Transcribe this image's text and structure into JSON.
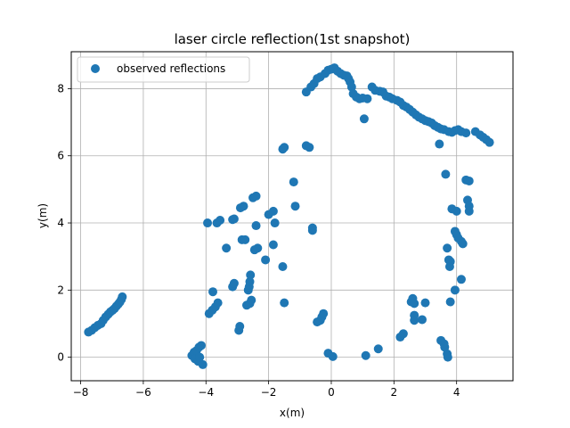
{
  "chart_data": {
    "type": "scatter",
    "title": "laser circle reflection(1st snapshot)",
    "xlabel": "x(m)",
    "ylabel": "y(m)",
    "xlim": [
      -8.3,
      5.8
    ],
    "ylim": [
      -0.7,
      9.1
    ],
    "xticks": [
      -8,
      -6,
      -4,
      -2,
      0,
      2,
      4
    ],
    "yticks": [
      0,
      2,
      4,
      6,
      8
    ],
    "grid": true,
    "legend_position": "top-left",
    "point_color": "#1f77b4",
    "series": [
      {
        "name": "observed reflections",
        "points": [
          [
            -7.75,
            0.75
          ],
          [
            -7.65,
            0.8
          ],
          [
            -7.55,
            0.88
          ],
          [
            -7.45,
            0.95
          ],
          [
            -7.35,
            1.0
          ],
          [
            -7.28,
            1.1
          ],
          [
            -7.2,
            1.2
          ],
          [
            -7.12,
            1.28
          ],
          [
            -7.05,
            1.35
          ],
          [
            -6.98,
            1.4
          ],
          [
            -6.92,
            1.45
          ],
          [
            -6.86,
            1.52
          ],
          [
            -6.8,
            1.58
          ],
          [
            -6.75,
            1.64
          ],
          [
            -6.7,
            1.72
          ],
          [
            -6.67,
            1.8
          ],
          [
            -4.45,
            0.05
          ],
          [
            -4.38,
            0.15
          ],
          [
            -4.3,
            0.2
          ],
          [
            -4.22,
            0.3
          ],
          [
            -4.15,
            0.35
          ],
          [
            -4.35,
            -0.05
          ],
          [
            -4.25,
            -0.12
          ],
          [
            -4.1,
            -0.22
          ],
          [
            -4.2,
            0.0
          ],
          [
            -3.9,
            1.3
          ],
          [
            -3.8,
            1.4
          ],
          [
            -3.7,
            1.5
          ],
          [
            -3.62,
            1.62
          ],
          [
            -3.78,
            1.95
          ],
          [
            -3.15,
            2.1
          ],
          [
            -3.1,
            2.2
          ],
          [
            -2.95,
            0.8
          ],
          [
            -2.92,
            0.92
          ],
          [
            -2.7,
            1.55
          ],
          [
            -2.6,
            1.6
          ],
          [
            -2.55,
            1.7
          ],
          [
            -2.65,
            2.0
          ],
          [
            -2.62,
            2.1
          ],
          [
            -2.6,
            2.25
          ],
          [
            -2.58,
            2.45
          ],
          [
            -2.45,
            3.2
          ],
          [
            -2.35,
            3.25
          ],
          [
            -2.1,
            2.9
          ],
          [
            -1.85,
            3.35
          ],
          [
            -1.55,
            2.7
          ],
          [
            -1.5,
            1.62
          ],
          [
            -3.95,
            4.0
          ],
          [
            -3.65,
            4.0
          ],
          [
            -3.55,
            4.08
          ],
          [
            -3.15,
            4.1
          ],
          [
            -3.1,
            4.12
          ],
          [
            -2.9,
            4.45
          ],
          [
            -2.8,
            4.5
          ],
          [
            -2.5,
            4.75
          ],
          [
            -2.4,
            4.8
          ],
          [
            -2.4,
            3.92
          ],
          [
            -2.0,
            4.25
          ],
          [
            -1.85,
            4.35
          ],
          [
            -1.8,
            4.0
          ],
          [
            -3.35,
            3.25
          ],
          [
            -2.85,
            3.5
          ],
          [
            -2.75,
            3.5
          ],
          [
            -1.55,
            6.2
          ],
          [
            -1.5,
            6.25
          ],
          [
            -1.2,
            5.22
          ],
          [
            -1.15,
            4.5
          ],
          [
            -0.8,
            6.3
          ],
          [
            -0.7,
            6.25
          ],
          [
            -0.6,
            3.78
          ],
          [
            -0.6,
            3.85
          ],
          [
            -0.45,
            1.05
          ],
          [
            -0.35,
            1.1
          ],
          [
            -0.3,
            1.2
          ],
          [
            -0.25,
            1.3
          ],
          [
            -0.1,
            0.12
          ],
          [
            0.05,
            0.02
          ],
          [
            -0.8,
            7.9
          ],
          [
            -0.65,
            8.05
          ],
          [
            -0.55,
            8.15
          ],
          [
            -0.45,
            8.3
          ],
          [
            -0.35,
            8.35
          ],
          [
            -0.2,
            8.45
          ],
          [
            -0.1,
            8.55
          ],
          [
            0.0,
            8.58
          ],
          [
            0.1,
            8.62
          ],
          [
            0.2,
            8.52
          ],
          [
            0.3,
            8.45
          ],
          [
            0.4,
            8.4
          ],
          [
            0.5,
            8.38
          ],
          [
            0.55,
            8.3
          ],
          [
            0.6,
            8.2
          ],
          [
            0.65,
            8.05
          ],
          [
            0.7,
            7.85
          ],
          [
            0.8,
            7.75
          ],
          [
            0.9,
            7.7
          ],
          [
            1.0,
            7.72
          ],
          [
            1.05,
            7.1
          ],
          [
            1.15,
            7.7
          ],
          [
            1.3,
            8.05
          ],
          [
            1.4,
            7.95
          ],
          [
            1.55,
            7.92
          ],
          [
            1.65,
            7.9
          ],
          [
            1.75,
            7.78
          ],
          [
            1.85,
            7.75
          ],
          [
            1.95,
            7.7
          ],
          [
            2.1,
            7.65
          ],
          [
            2.2,
            7.6
          ],
          [
            2.3,
            7.5
          ],
          [
            2.4,
            7.45
          ],
          [
            2.5,
            7.38
          ],
          [
            2.6,
            7.3
          ],
          [
            2.7,
            7.22
          ],
          [
            2.8,
            7.15
          ],
          [
            2.9,
            7.1
          ],
          [
            3.0,
            7.05
          ],
          [
            3.1,
            7.02
          ],
          [
            3.2,
            6.98
          ],
          [
            3.3,
            6.9
          ],
          [
            3.4,
            6.85
          ],
          [
            3.5,
            6.8
          ],
          [
            3.6,
            6.78
          ],
          [
            3.75,
            6.72
          ],
          [
            3.85,
            6.7
          ],
          [
            3.95,
            6.75
          ],
          [
            4.05,
            6.78
          ],
          [
            4.15,
            6.72
          ],
          [
            4.3,
            6.68
          ],
          [
            4.6,
            6.72
          ],
          [
            4.75,
            6.62
          ],
          [
            4.85,
            6.55
          ],
          [
            4.95,
            6.48
          ],
          [
            5.05,
            6.4
          ],
          [
            3.45,
            6.35
          ],
          [
            3.65,
            5.45
          ],
          [
            4.3,
            5.28
          ],
          [
            4.4,
            5.25
          ],
          [
            4.35,
            4.68
          ],
          [
            4.4,
            4.5
          ],
          [
            4.4,
            4.35
          ],
          [
            3.85,
            4.42
          ],
          [
            4.0,
            4.35
          ],
          [
            3.95,
            3.75
          ],
          [
            4.0,
            3.65
          ],
          [
            4.05,
            3.55
          ],
          [
            4.15,
            3.45
          ],
          [
            4.2,
            3.38
          ],
          [
            3.7,
            3.25
          ],
          [
            3.75,
            2.9
          ],
          [
            3.8,
            2.85
          ],
          [
            3.78,
            2.7
          ],
          [
            3.95,
            2.0
          ],
          [
            4.15,
            2.32
          ],
          [
            3.8,
            1.65
          ],
          [
            2.55,
            1.65
          ],
          [
            2.6,
            1.75
          ],
          [
            2.65,
            1.6
          ],
          [
            2.65,
            1.25
          ],
          [
            2.65,
            1.1
          ],
          [
            2.9,
            1.12
          ],
          [
            3.0,
            1.62
          ],
          [
            2.2,
            0.6
          ],
          [
            2.3,
            0.7
          ],
          [
            3.5,
            0.5
          ],
          [
            3.6,
            0.4
          ],
          [
            3.62,
            0.3
          ],
          [
            3.7,
            0.1
          ],
          [
            3.72,
            0.0
          ],
          [
            1.1,
            0.05
          ],
          [
            1.5,
            0.25
          ]
        ]
      }
    ]
  }
}
